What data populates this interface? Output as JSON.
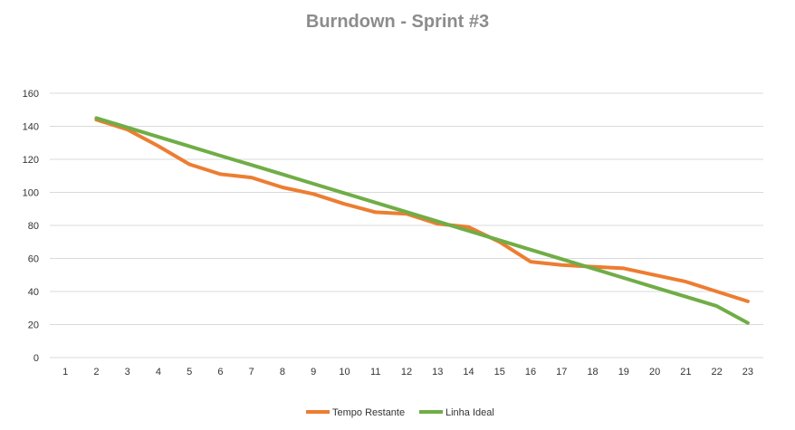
{
  "chart_data": {
    "type": "line",
    "title": "Burndown - Sprint #3",
    "xlabel": "",
    "ylabel": "",
    "categories": [
      "1",
      "2",
      "3",
      "4",
      "5",
      "6",
      "7",
      "8",
      "9",
      "10",
      "11",
      "12",
      "13",
      "14",
      "15",
      "16",
      "17",
      "18",
      "19",
      "20",
      "21",
      "22",
      "23"
    ],
    "ylim": [
      0,
      160
    ],
    "yticks": [
      "0",
      "20",
      "40",
      "60",
      "80",
      "100",
      "120",
      "140",
      "160"
    ],
    "grid": true,
    "legend": "bottom-center",
    "series": [
      {
        "name": "Tempo Restante",
        "color": "#ed7d31",
        "values": [
          null,
          144,
          138,
          128,
          117,
          111,
          109,
          103,
          99,
          93,
          88,
          87,
          81,
          79,
          70,
          58,
          56,
          55,
          54,
          50,
          46,
          40,
          34
        ]
      },
      {
        "name": "Linha Ideal",
        "color": "#70ad47",
        "values": [
          null,
          145,
          139.3,
          133.6,
          127.9,
          122.2,
          116.6,
          110.9,
          105.2,
          99.5,
          93.8,
          88.1,
          82.4,
          76.7,
          71,
          65.3,
          59.6,
          53.9,
          48.2,
          42.5,
          36.9,
          31.2,
          21
        ]
      }
    ]
  }
}
